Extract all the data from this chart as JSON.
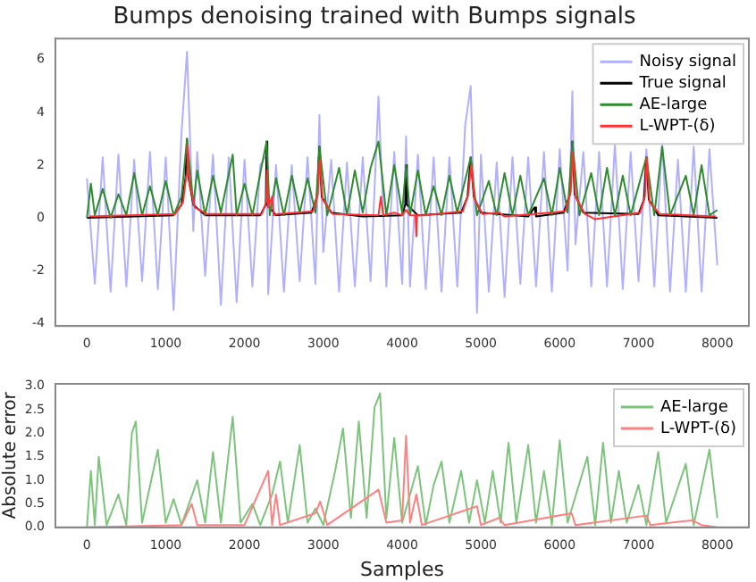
{
  "chart_data": [
    {
      "type": "line",
      "title": "Bumps denoising trained with Bumps signals",
      "xlim": [
        -400,
        8400
      ],
      "ylim": [
        -4.1,
        6.8
      ],
      "xticks": [
        0,
        1000,
        2000,
        3000,
        4000,
        5000,
        6000,
        7000,
        8000
      ],
      "yticks": [
        -4,
        -2,
        0,
        2,
        4,
        6
      ],
      "grid": false,
      "legend": "top right",
      "marker": "none",
      "line_style": "solid",
      "series": [
        {
          "name": "Noisy signal",
          "color": "#b0b0ff",
          "x": [
            0,
            100,
            200,
            300,
            400,
            500,
            600,
            700,
            800,
            900,
            1000,
            1100,
            1200,
            1270,
            1350,
            1400,
            1500,
            1600,
            1700,
            1800,
            1900,
            2000,
            2100,
            2200,
            2280,
            2300,
            2400,
            2500,
            2600,
            2700,
            2800,
            2900,
            2950,
            3000,
            3100,
            3200,
            3300,
            3400,
            3500,
            3600,
            3700,
            3800,
            3900,
            4000,
            4050,
            4100,
            4200,
            4300,
            4400,
            4500,
            4600,
            4700,
            4800,
            4870,
            4950,
            5000,
            5100,
            5200,
            5300,
            5400,
            5500,
            5600,
            5700,
            5800,
            5900,
            6000,
            6100,
            6160,
            6200,
            6300,
            6400,
            6500,
            6600,
            6700,
            6800,
            6900,
            7000,
            7100,
            7200,
            7300,
            7400,
            7500,
            7600,
            7700,
            7800,
            7900,
            8000
          ],
          "values": [
            1.5,
            -2.5,
            2.3,
            -2.8,
            2.4,
            -2.6,
            2.2,
            -2.4,
            2.5,
            -2.7,
            2.3,
            -3.5,
            3.2,
            6.3,
            -0.5,
            2.5,
            -2.2,
            2.4,
            -3.3,
            2.3,
            -3.2,
            2.2,
            -2.6,
            2.0,
            2.4,
            -2.9,
            2.0,
            -2.8,
            2.0,
            -2.4,
            2.3,
            -2.5,
            3.9,
            -1.3,
            2.2,
            -2.8,
            2.1,
            -2.6,
            2.3,
            -2.4,
            4.6,
            -2.6,
            2.5,
            -2.5,
            3.1,
            -2.6,
            2.4,
            -2.7,
            2.3,
            -2.8,
            2.3,
            -2.6,
            3.5,
            5.0,
            -3.6,
            2.4,
            -2.8,
            2.1,
            -3.0,
            2.3,
            -2.5,
            2.3,
            -2.6,
            2.5,
            -2.8,
            2.6,
            -2.0,
            4.8,
            -1.0,
            2.5,
            -2.6,
            2.5,
            -2.6,
            2.8,
            -2.7,
            2.5,
            -2.4,
            2.6,
            -2.6,
            2.9,
            -2.8,
            2.2,
            -2.8,
            2.7,
            -2.8,
            2.6,
            -1.8
          ]
        },
        {
          "name": "True signal",
          "color": "#000000",
          "x": [
            0,
            1100,
            1200,
            1250,
            1270,
            1290,
            1350,
            1500,
            2200,
            2270,
            2280,
            2290,
            2400,
            2850,
            2920,
            2950,
            2980,
            3100,
            3500,
            4000,
            4040,
            4050,
            4060,
            4200,
            4750,
            4830,
            4870,
            4910,
            5000,
            5600,
            5680,
            5700,
            6050,
            6130,
            6160,
            6190,
            6300,
            7000,
            7070,
            7100,
            7130,
            7250,
            8000
          ],
          "values": [
            0,
            0.1,
            0.5,
            1.5,
            3.0,
            1.5,
            0.5,
            0.1,
            0.1,
            0.5,
            2.9,
            0.5,
            0.1,
            0.2,
            0.8,
            2.7,
            0.8,
            0.2,
            0.05,
            0.1,
            0.5,
            2.0,
            0.5,
            0.1,
            0.2,
            0.8,
            2.3,
            0.8,
            0.2,
            0.05,
            0.4,
            0.05,
            0.2,
            0.9,
            2.9,
            0.9,
            0.2,
            0.15,
            0.7,
            2.3,
            0.7,
            0.1,
            0
          ]
        },
        {
          "name": "AE-large",
          "color": "#2e8b2e",
          "x": [
            0,
            50,
            100,
            200,
            300,
            400,
            500,
            600,
            700,
            800,
            900,
            1000,
            1100,
            1200,
            1270,
            1350,
            1400,
            1500,
            1600,
            1700,
            1850,
            1900,
            2000,
            2100,
            2200,
            2280,
            2320,
            2400,
            2500,
            2600,
            2700,
            2800,
            2900,
            2950,
            3050,
            3200,
            3300,
            3400,
            3500,
            3600,
            3700,
            3800,
            3900,
            4000,
            4050,
            4100,
            4200,
            4300,
            4400,
            4500,
            4600,
            4700,
            4870,
            4950,
            5100,
            5200,
            5300,
            5400,
            5500,
            5600,
            5800,
            5900,
            6000,
            6100,
            6160,
            6250,
            6400,
            6500,
            6600,
            6700,
            6800,
            6900,
            7100,
            7200,
            7300,
            7400,
            7600,
            7700,
            7800,
            7900,
            8000
          ],
          "values": [
            0,
            1.3,
            0.1,
            1.1,
            0,
            0.9,
            0.1,
            1.7,
            0.1,
            1.2,
            0.1,
            1.4,
            0.1,
            0.8,
            3.0,
            0.5,
            1.8,
            0.1,
            1.6,
            0.2,
            2.4,
            0.1,
            1.3,
            0.1,
            1.7,
            2.9,
            0.1,
            1.5,
            0.1,
            1.6,
            0.2,
            1.5,
            0.2,
            2.7,
            0.1,
            1.9,
            0.1,
            1.8,
            0.2,
            1.9,
            2.9,
            0.1,
            2.0,
            0.2,
            2.0,
            0.1,
            1.8,
            0.1,
            1.2,
            0.1,
            1.6,
            0.2,
            2.3,
            0.1,
            1.4,
            0.1,
            1.7,
            0.1,
            1.6,
            0.1,
            1.5,
            0.1,
            1.9,
            0.2,
            2.9,
            0.1,
            1.7,
            0.1,
            1.9,
            0.1,
            1.6,
            0.1,
            2.3,
            0.1,
            2.7,
            0.1,
            1.6,
            0.1,
            2.0,
            0.1,
            0.3
          ]
        },
        {
          "name": "L-WPT-(δ)",
          "color": "#ff3030",
          "x": [
            30,
            1120,
            1220,
            1260,
            1275,
            1300,
            1370,
            1520,
            2220,
            2275,
            2285,
            2300,
            2350,
            2370,
            2420,
            2870,
            2930,
            2955,
            2990,
            3120,
            3700,
            3730,
            3760,
            3900,
            4000,
            4050,
            4100,
            4170,
            4180,
            4190,
            4300,
            4770,
            4840,
            4875,
            4920,
            5020,
            5230,
            5300,
            6070,
            6140,
            6165,
            6200,
            6320,
            6450,
            7020,
            7080,
            7105,
            7140,
            7270,
            7650,
            7980
          ],
          "values": [
            0.05,
            0.15,
            0.6,
            1.6,
            2.8,
            1.3,
            0.4,
            0.15,
            0.15,
            0.6,
            1.8,
            0.4,
            0.8,
            0.1,
            0.15,
            0.25,
            0.9,
            2.2,
            0.7,
            0.15,
            0.1,
            0.8,
            0.1,
            0.2,
            0.1,
            0.3,
            0.1,
            0.1,
            -0.7,
            0.1,
            0.1,
            0.25,
            0.9,
            2.0,
            0.7,
            0.15,
            0.2,
            0.05,
            0.25,
            1.0,
            2.5,
            0.8,
            0.15,
            -0.05,
            0.2,
            0.8,
            2.3,
            0.6,
            0.15,
            0.1,
            0.05
          ]
        }
      ]
    },
    {
      "type": "line",
      "xlabel": "Samples",
      "ylabel": "Absolute error",
      "xlim": [
        -400,
        8400
      ],
      "ylim": [
        0,
        3.05
      ],
      "xticks": [
        0,
        1000,
        2000,
        3000,
        4000,
        5000,
        6000,
        7000,
        8000
      ],
      "yticks": [
        {
          "value": 0,
          "label": "0.0"
        },
        {
          "value": 0.5,
          "label": "0.5"
        },
        {
          "value": 1,
          "label": "1.0"
        },
        {
          "value": 1.5,
          "label": "1.5"
        },
        {
          "value": 2,
          "label": "2.0"
        },
        {
          "value": 2.5,
          "label": "2.5"
        },
        {
          "value": 3,
          "label": "3.0"
        }
      ],
      "grid": false,
      "legend": "top right",
      "marker": "none",
      "line_style": "solid",
      "series": [
        {
          "name": "AE-large",
          "color": "#7cc47c",
          "x": [
            0,
            50,
            100,
            150,
            250,
            400,
            500,
            570,
            620,
            700,
            900,
            1000,
            1100,
            1200,
            1400,
            1500,
            1600,
            1700,
            1850,
            1950,
            2100,
            2200,
            2350,
            2450,
            2550,
            2700,
            2800,
            2900,
            3000,
            3150,
            3250,
            3350,
            3450,
            3550,
            3650,
            3720,
            3800,
            3900,
            4000,
            4200,
            4300,
            4400,
            4500,
            4600,
            4750,
            4850,
            4950,
            5050,
            5150,
            5250,
            5350,
            5450,
            5600,
            5700,
            5800,
            5900,
            6000,
            6100,
            6350,
            6450,
            6550,
            6650,
            6750,
            6850,
            7000,
            7100,
            7250,
            7350,
            7600,
            7700,
            7900,
            8000
          ],
          "values": [
            0,
            1.2,
            0.05,
            1.5,
            0.05,
            0.7,
            0.05,
            2.0,
            2.25,
            0.1,
            1.65,
            0.1,
            0.6,
            0.05,
            1.0,
            0.1,
            1.6,
            0.1,
            2.35,
            0.1,
            0.5,
            0.05,
            0.7,
            1.4,
            0.1,
            1.75,
            0.1,
            0.4,
            0.05,
            1.2,
            2.1,
            0.2,
            2.25,
            0.2,
            2.55,
            2.85,
            0.2,
            1.9,
            0.1,
            1.3,
            0.05,
            0.9,
            1.4,
            0.1,
            1.2,
            0.1,
            1.0,
            0.1,
            1.2,
            0.1,
            1.8,
            0.1,
            1.75,
            0.1,
            1.2,
            0.05,
            1.85,
            0.1,
            1.5,
            0.05,
            1.8,
            0.1,
            1.2,
            0.1,
            0.9,
            0.05,
            1.6,
            0.1,
            1.35,
            0.05,
            1.65,
            0.2
          ]
        },
        {
          "name": "L-WPT-(δ)",
          "color": "#ff8080",
          "x": [
            0,
            1200,
            1330,
            1400,
            2000,
            2300,
            2350,
            2400,
            2450,
            2900,
            2960,
            3050,
            3700,
            3800,
            4000,
            4050,
            4100,
            4180,
            4250,
            4950,
            5000,
            5230,
            5300,
            6150,
            6200,
            7100,
            7150,
            7680,
            7800,
            8000
          ],
          "values": [
            0,
            0.05,
            0.5,
            0.05,
            0.05,
            1.2,
            0.05,
            0.7,
            0.05,
            0.3,
            0.55,
            0.05,
            0.8,
            0.1,
            0.15,
            1.95,
            0.1,
            0.7,
            0.05,
            0.45,
            0.05,
            0.2,
            0.05,
            0.3,
            0.05,
            0.25,
            0.05,
            0.15,
            0.05,
            0
          ]
        }
      ]
    }
  ]
}
